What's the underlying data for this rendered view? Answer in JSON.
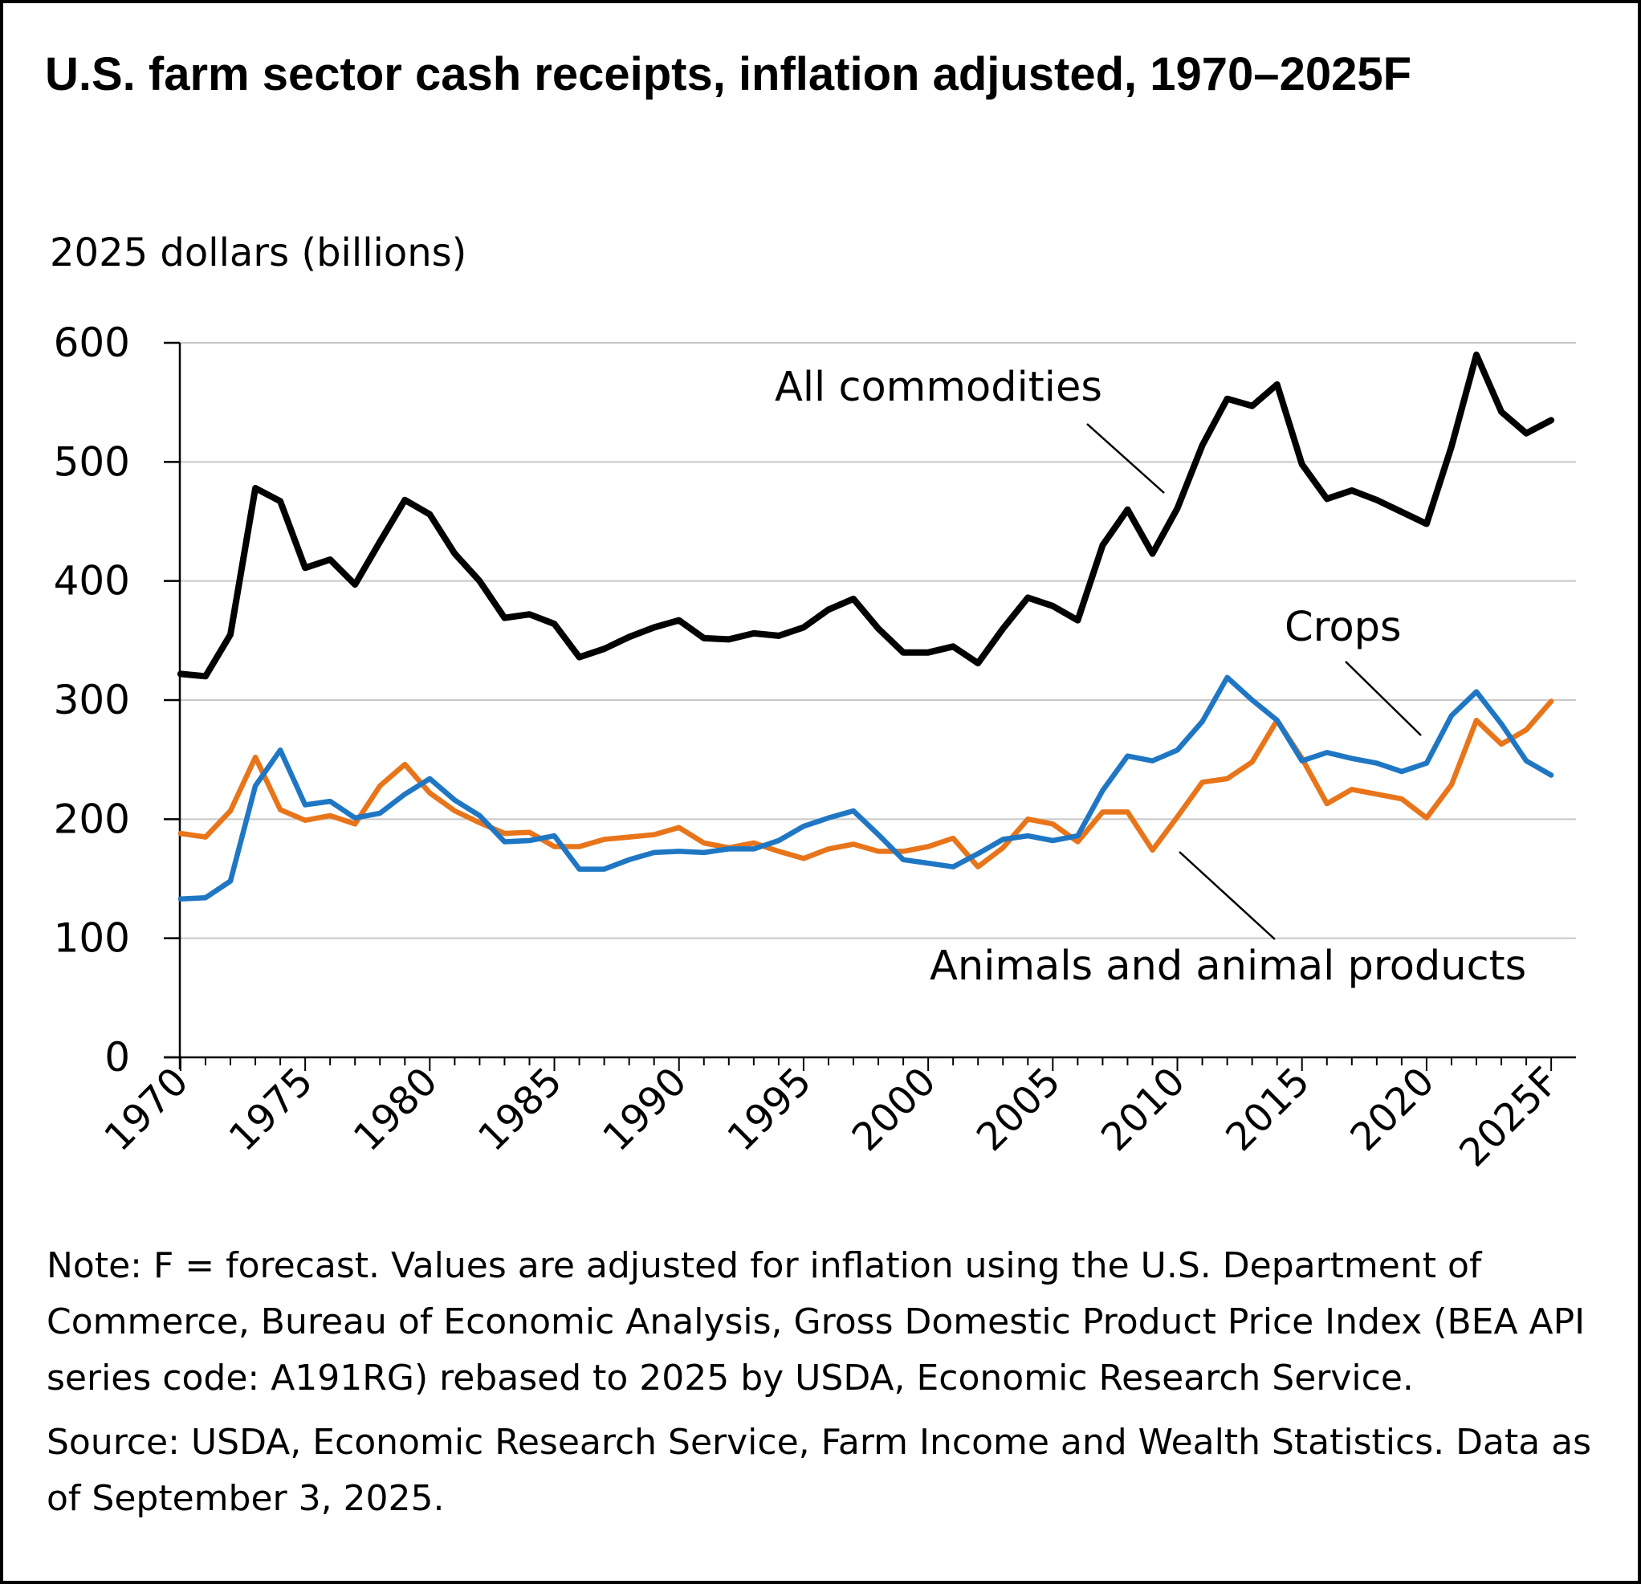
{
  "title": "U.S. farm sector cash receipts, inflation adjusted, 1970–2025F",
  "note": "Note: F = forecast. Values are adjusted for inflation using the U.S. Department of Commerce, Bureau of Economic Analysis, Gross Domestic Product Price Index (BEA API series code: A191RG) rebased to 2025 by USDA, Economic Research Service.",
  "source": "Source: USDA, Economic Research Service, Farm Income and Wealth Statistics. Data as of September 3, 2025.",
  "chart_data": {
    "type": "line",
    "title": "U.S. farm sector cash receipts, inflation adjusted, 1970–2025F",
    "xlabel": "",
    "ylabel": "2025 dollars (billions)",
    "ylim": [
      0,
      600
    ],
    "yticks": [
      0,
      100,
      200,
      300,
      400,
      500,
      600
    ],
    "ytick_labels": [
      "0",
      "100",
      "200",
      "300",
      "400",
      "500",
      "600"
    ],
    "xlim": [
      1970,
      2025
    ],
    "xticks": [
      1970,
      1975,
      1980,
      1985,
      1990,
      1995,
      2000,
      2005,
      2010,
      2015,
      2020,
      2025
    ],
    "xtick_labels": [
      "1970",
      "1975",
      "1980",
      "1985",
      "1990",
      "1995",
      "2000",
      "2005",
      "2010",
      "2015",
      "2020",
      "2025F"
    ],
    "grid": true,
    "x": [
      1970,
      1971,
      1972,
      1973,
      1974,
      1975,
      1976,
      1977,
      1978,
      1979,
      1980,
      1981,
      1982,
      1983,
      1984,
      1985,
      1986,
      1987,
      1988,
      1989,
      1990,
      1991,
      1992,
      1993,
      1994,
      1995,
      1996,
      1997,
      1998,
      1999,
      2000,
      2001,
      2002,
      2003,
      2004,
      2005,
      2006,
      2007,
      2008,
      2009,
      2010,
      2011,
      2012,
      2013,
      2014,
      2015,
      2016,
      2017,
      2018,
      2019,
      2020,
      2021,
      2022,
      2023,
      2024,
      2025
    ],
    "series": [
      {
        "name": "All commodities",
        "label": "All commodities",
        "color": "#000000",
        "values": [
          322,
          320,
          355,
          478,
          467,
          411,
          418,
          397,
          433,
          468,
          456,
          423,
          400,
          369,
          372,
          364,
          336,
          343,
          353,
          361,
          367,
          352,
          351,
          356,
          354,
          361,
          376,
          385,
          360,
          340,
          340,
          345,
          331,
          360,
          386,
          379,
          367,
          430,
          460,
          423,
          461,
          514,
          553,
          547,
          565,
          498,
          469,
          476,
          468,
          458,
          448,
          513,
          590,
          542,
          524,
          535
        ]
      },
      {
        "name": "Crops",
        "label": "Crops",
        "color": "#1f77c4",
        "values": [
          133,
          134,
          148,
          228,
          258,
          212,
          215,
          201,
          205,
          221,
          234,
          216,
          203,
          181,
          182,
          186,
          158,
          158,
          166,
          172,
          173,
          172,
          175,
          175,
          182,
          194,
          201,
          207,
          187,
          166,
          163,
          160,
          171,
          183,
          186,
          182,
          186,
          224,
          253,
          249,
          258,
          282,
          319,
          300,
          283,
          249,
          256,
          251,
          247,
          240,
          247,
          287,
          307,
          280,
          249,
          237
        ]
      },
      {
        "name": "Animals and animal products",
        "label": "Animals and animal products",
        "color": "#e8751a",
        "values": [
          188,
          185,
          207,
          252,
          208,
          199,
          203,
          196,
          228,
          246,
          222,
          207,
          197,
          188,
          189,
          177,
          177,
          183,
          185,
          187,
          193,
          180,
          176,
          180,
          173,
          167,
          175,
          179,
          173,
          173,
          177,
          184,
          160,
          176,
          200,
          196,
          181,
          206,
          206,
          174,
          202,
          231,
          234,
          248,
          283,
          251,
          213,
          225,
          221,
          217,
          201,
          229,
          283,
          263,
          275,
          299
        ]
      }
    ]
  }
}
